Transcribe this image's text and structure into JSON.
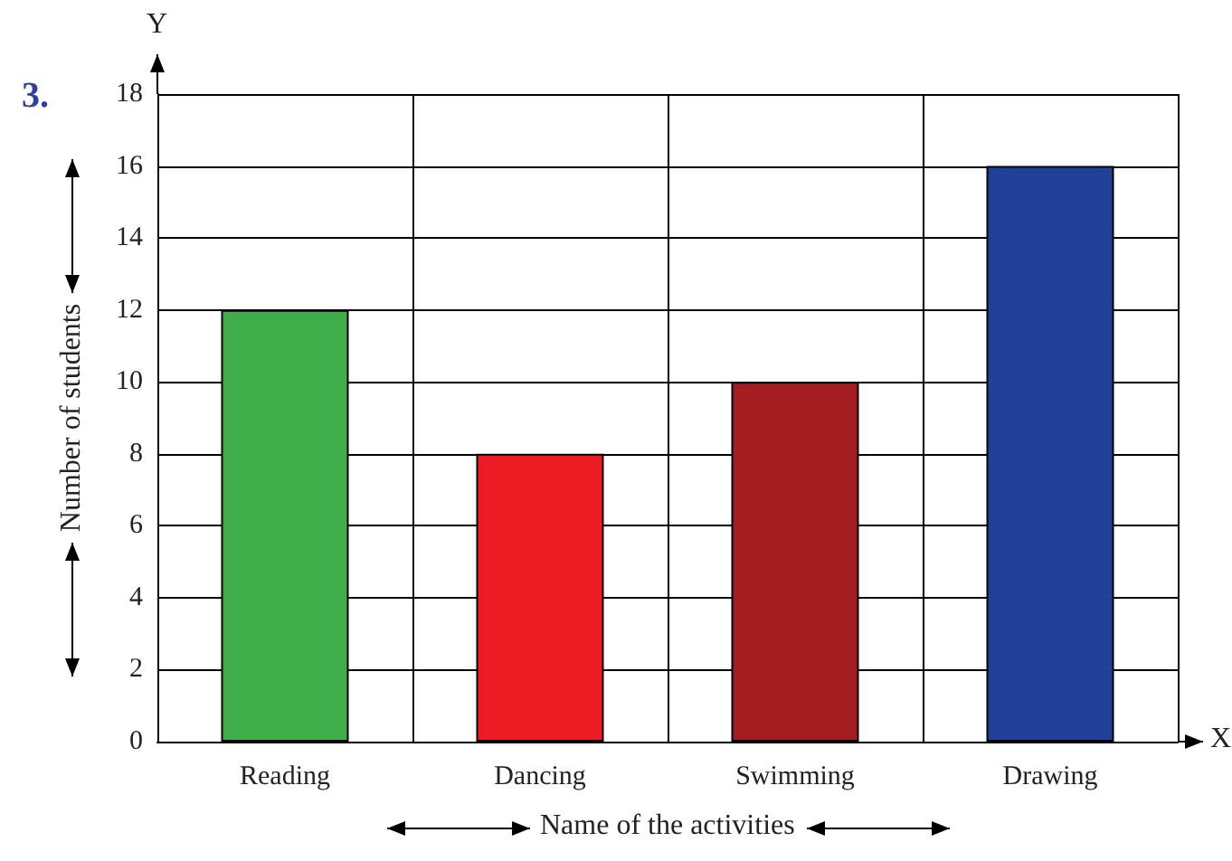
{
  "chart_data": {
    "type": "bar",
    "categories": [
      "Reading",
      "Dancing",
      "Swimming",
      "Drawing"
    ],
    "values": [
      12,
      8,
      10,
      16
    ],
    "colors": [
      "#3fae49",
      "#ed1c24",
      "#a31d21",
      "#21409a"
    ],
    "xlabel": "Name of the activities",
    "ylabel": "Number of students",
    "ylim": [
      0,
      18
    ],
    "yticks": [
      0,
      2,
      4,
      6,
      8,
      10,
      12,
      14,
      16,
      18
    ],
    "grid": true,
    "annotations": [
      "3.",
      "Y",
      "X"
    ]
  }
}
